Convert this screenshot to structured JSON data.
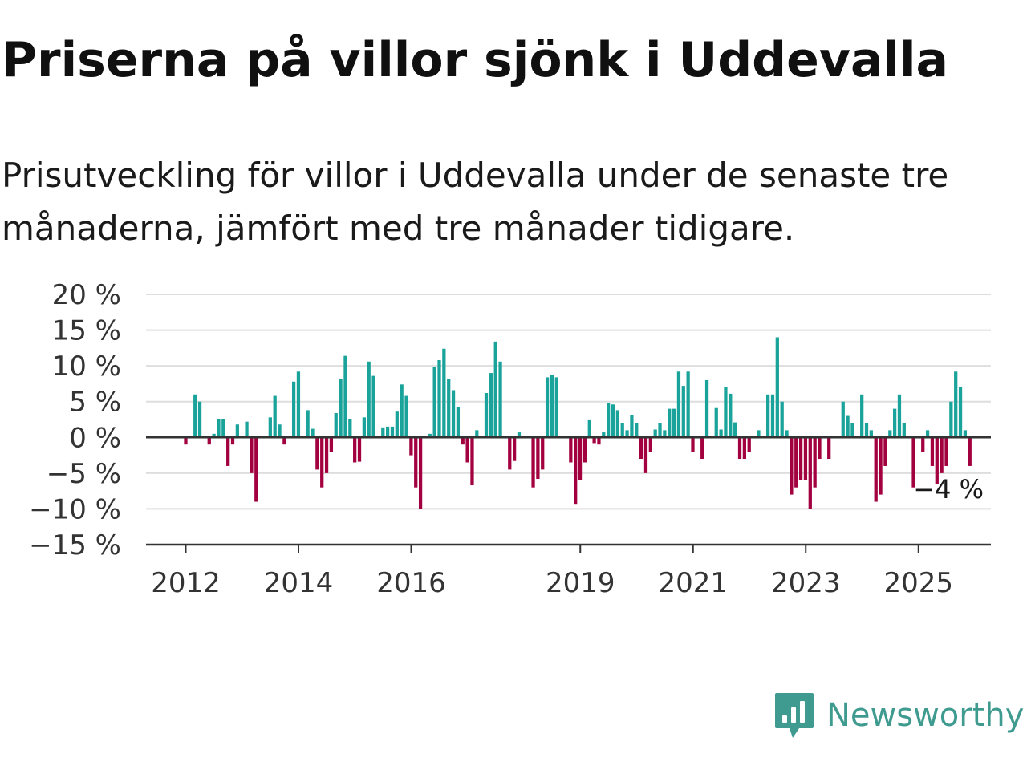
{
  "title": "Priserna på villor sjönk i Uddevalla",
  "subtitle": "Prisutveckling för villor i Uddevalla under de senaste tre månaderna, jämfört med tre månader tidigare.",
  "brand": {
    "name": "Newsworthy",
    "color": "#3f9a8f"
  },
  "colors": {
    "positive": "#1aa39a",
    "negative": "#a3003f",
    "grid": "#dedede",
    "axis": "#333333"
  },
  "chart_data": {
    "type": "bar",
    "ylim": [
      -15,
      20
    ],
    "yticks": [
      20,
      15,
      10,
      5,
      0,
      -5,
      -10,
      -15
    ],
    "ytick_labels": [
      "20 %",
      "15 %",
      "10 %",
      "5 %",
      "0 %",
      "−5 %",
      "−10 %",
      "−15 %"
    ],
    "xticks": [
      {
        "label": "2012",
        "x": 2012.0
      },
      {
        "label": "2014",
        "x": 2014.0
      },
      {
        "label": "2016",
        "x": 2016.0
      },
      {
        "label": "2019",
        "x": 2019.0
      },
      {
        "label": "2021",
        "x": 2021.0
      },
      {
        "label": "2023",
        "x": 2023.0
      },
      {
        "label": "2025",
        "x": 2025.0
      }
    ],
    "x_start": 2012.0,
    "bar_step_years": 0.0833,
    "end_label": "−4 %",
    "grid": true,
    "values": [
      -1,
      0,
      6,
      5,
      0,
      -1,
      0.5,
      2.5,
      2.5,
      -4,
      -1,
      1.8,
      0,
      2.2,
      -5,
      -9,
      0,
      0,
      2.8,
      5.8,
      1.8,
      -1,
      0,
      7.8,
      9.2,
      0,
      3.8,
      1.2,
      -4.5,
      -7,
      -5,
      -2,
      3.4,
      8.2,
      11.4,
      2.5,
      -3.5,
      -3.4,
      2.8,
      10.6,
      8.6,
      0,
      1.4,
      1.5,
      1.5,
      3.6,
      7.4,
      5.8,
      -2.5,
      -7,
      -10,
      0,
      0.5,
      9.8,
      10.8,
      12.4,
      8.2,
      6.6,
      4.2,
      -1,
      -3.5,
      -6.7,
      1,
      0,
      6.2,
      9,
      13.4,
      10.6,
      0,
      -4.5,
      -3.3,
      0.7,
      0,
      0,
      -7,
      -5.8,
      -4.5,
      8.4,
      8.7,
      8.4,
      0,
      0,
      -3.5,
      -9.3,
      -6,
      -3.5,
      2.4,
      -0.8,
      -1,
      0.7,
      4.8,
      4.6,
      3.8,
      2,
      1,
      3.1,
      2,
      -3,
      -5,
      -2,
      1.1,
      2,
      1,
      4,
      4,
      9.2,
      7.2,
      9.2,
      -2,
      0,
      -3,
      8,
      0,
      4.1,
      1.1,
      7.1,
      6.1,
      2.1,
      -3,
      -3,
      -2,
      0,
      1,
      0,
      6,
      6,
      14,
      5,
      1,
      -8,
      -7,
      -6,
      -6,
      -10,
      -7,
      -3,
      0,
      -3,
      0,
      0,
      5,
      3,
      2,
      0,
      6,
      2,
      1,
      -9,
      -8,
      -4,
      1,
      4,
      6,
      2,
      0,
      -7,
      0,
      -2,
      1,
      -4,
      -6.5,
      -5,
      -4,
      5,
      9.2,
      7.1,
      1,
      -4
    ]
  }
}
